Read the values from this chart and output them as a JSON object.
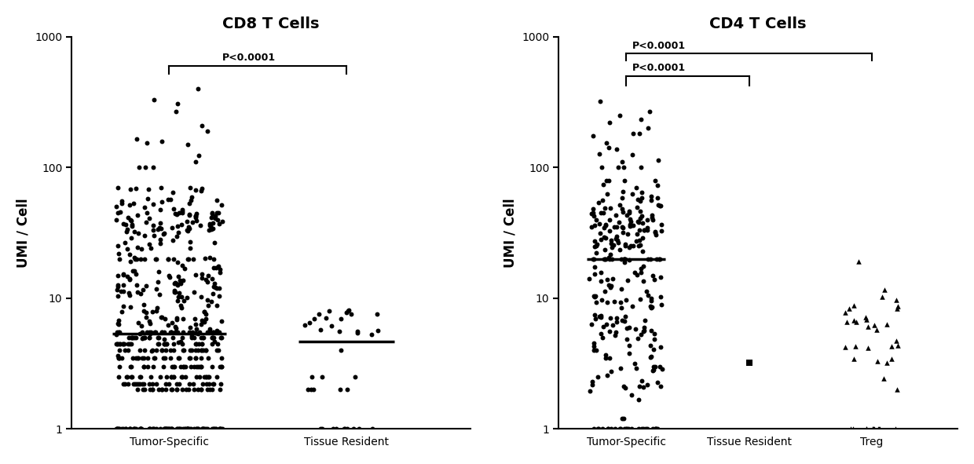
{
  "left_title": "CD8 T Cells",
  "right_title": "CD4 T Cells",
  "ylabel": "UMI / Cell",
  "ylim": [
    1,
    1000
  ],
  "cd8_pvalue": "P<0.0001",
  "cd4_pvalue1": "P<0.0001",
  "cd4_pvalue2": "P<0.0001",
  "marker_color": "#000000",
  "marker_circle": "o",
  "marker_square": "s",
  "marker_triangle": "^",
  "tick_label_fontsize": 10,
  "axis_label_fontsize": 12,
  "title_fontsize": 14,
  "pvalue_fontsize": 9,
  "background_color": "#ffffff",
  "spine_color": "#000000"
}
